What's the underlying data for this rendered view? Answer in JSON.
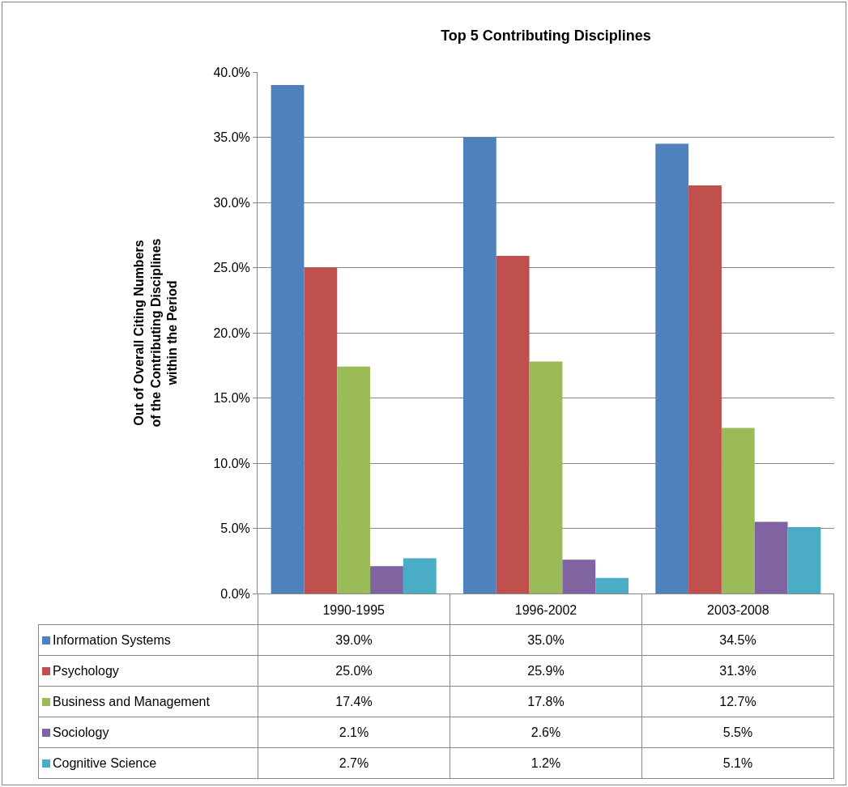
{
  "chart_data": {
    "type": "bar",
    "title": "Top 5 Contributing Disciplines",
    "ylabel": "Out of Overall Citing Numbers\nof the Contributing Disciplines\nwithin the Period",
    "categories": [
      "1990-1995",
      "1996-2002",
      "2003-2008"
    ],
    "series": [
      {
        "name": "Information Systems",
        "color": "#4f81bd",
        "values": [
          39.0,
          35.0,
          34.5
        ],
        "value_labels": [
          "39.0%",
          "35.0%",
          "34.5%"
        ]
      },
      {
        "name": "Psychology",
        "color": "#c0504d",
        "values": [
          25.0,
          25.9,
          31.3
        ],
        "value_labels": [
          "25.0%",
          "25.9%",
          "31.3%"
        ]
      },
      {
        "name": "Business and Management",
        "color": "#9bbb59",
        "values": [
          17.4,
          17.8,
          12.7
        ],
        "value_labels": [
          "17.4%",
          "17.8%",
          "12.7%"
        ]
      },
      {
        "name": "Sociology",
        "color": "#8064a2",
        "values": [
          2.1,
          2.6,
          5.5
        ],
        "value_labels": [
          "2.1%",
          "2.6%",
          "5.5%"
        ]
      },
      {
        "name": "Cognitive Science",
        "color": "#4bacc6",
        "values": [
          2.7,
          1.2,
          5.1
        ],
        "value_labels": [
          "2.7%",
          "1.2%",
          "5.1%"
        ]
      }
    ],
    "ylim": [
      0,
      40
    ],
    "yticks": [
      {
        "value": 0,
        "label": "0.0%"
      },
      {
        "value": 5,
        "label": "5.0%"
      },
      {
        "value": 10,
        "label": "10.0%"
      },
      {
        "value": 15,
        "label": "15.0%"
      },
      {
        "value": 20,
        "label": "20.0%"
      },
      {
        "value": 25,
        "label": "25.0%"
      },
      {
        "value": 30,
        "label": "30.0%"
      },
      {
        "value": 35,
        "label": "35.0%"
      },
      {
        "value": 40,
        "label": "40.0%"
      }
    ],
    "grid": "y",
    "legend": "bottom"
  }
}
